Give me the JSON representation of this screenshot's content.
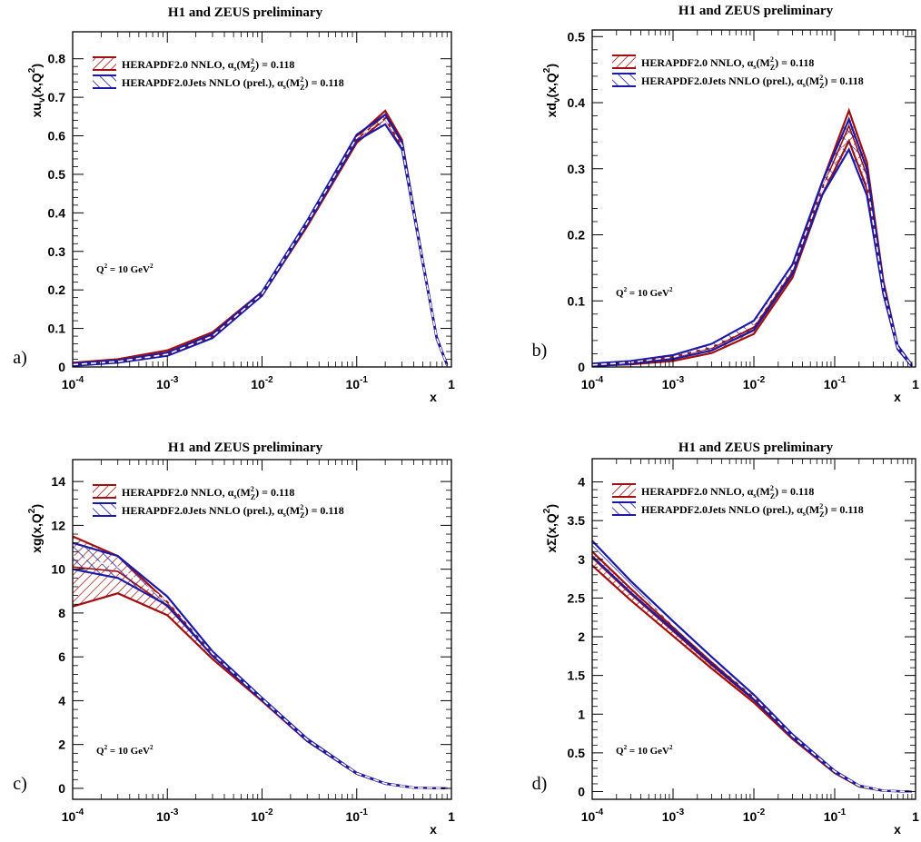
{
  "colors": {
    "red": "#a01010",
    "blue": "#1a1aa6",
    "dash": "#ffffff"
  },
  "legend": {
    "entry1": {
      "prefix": "HERAPDF2.0 NNLO, ",
      "alpha": "α",
      "s": "s",
      "m": "(M",
      "z": "Z",
      "two": "2",
      "close": ") = 0.118"
    },
    "entry2": {
      "prefix": "HERAPDF2.0Jets NNLO (prel.), ",
      "alpha": "α",
      "s": "s",
      "m": "(M",
      "z": "Z",
      "two": "2",
      "close": ") = 0.118"
    }
  },
  "q2_label": {
    "main": "Q",
    "sup": "2",
    "mid": " = 10 GeV",
    "sup2": "2"
  },
  "x_axis": {
    "label": "x",
    "ticks": [
      {
        "value": 0.0001,
        "base": "10",
        "exp": "-4"
      },
      {
        "value": 0.001,
        "base": "10",
        "exp": "-3"
      },
      {
        "value": 0.01,
        "base": "10",
        "exp": "-2"
      },
      {
        "value": 0.1,
        "base": "10",
        "exp": "-1"
      },
      {
        "value": 1,
        "base": "1",
        "exp": ""
      }
    ]
  },
  "chart_data": [
    {
      "type": "area",
      "panel": "a)",
      "title": "H1 and ZEUS preliminary",
      "ylabel": {
        "pre": "xu",
        "sub": "v",
        "mid": "(x,Q",
        "sup": "2",
        "post": ")"
      },
      "xscale": "log",
      "xlim": [
        0.0001,
        1
      ],
      "ylim": [
        0,
        0.87
      ],
      "yticks": [
        0,
        0.1,
        0.2,
        0.3,
        0.4,
        0.5,
        0.6,
        0.7,
        0.8
      ],
      "yticklabels": [
        "0",
        "0.1",
        "0.2",
        "0.3",
        "0.4",
        "0.5",
        "0.6",
        "0.7",
        "0.8"
      ],
      "x": [
        0.0001,
        0.0003,
        0.001,
        0.003,
        0.01,
        0.03,
        0.1,
        0.2,
        0.3,
        0.5,
        0.7,
        0.9
      ],
      "series": [
        {
          "central": [
            0.008,
            0.017,
            0.038,
            0.085,
            0.19,
            0.37,
            0.59,
            0.655,
            0.58,
            0.27,
            0.075,
            0.005
          ],
          "upper": [
            0.011,
            0.02,
            0.043,
            0.09,
            0.195,
            0.375,
            0.598,
            0.665,
            0.59,
            0.275,
            0.078,
            0.006
          ],
          "lower": [
            0.005,
            0.014,
            0.033,
            0.08,
            0.185,
            0.365,
            0.582,
            0.645,
            0.57,
            0.265,
            0.072,
            0.004
          ]
        },
        {
          "central": [
            0.006,
            0.014,
            0.033,
            0.08,
            0.19,
            0.375,
            0.595,
            0.645,
            0.575,
            0.27,
            0.075,
            0.005
          ],
          "upper": [
            0.009,
            0.017,
            0.037,
            0.085,
            0.195,
            0.38,
            0.603,
            0.655,
            0.585,
            0.275,
            0.078,
            0.006
          ],
          "lower": [
            0.003,
            0.011,
            0.029,
            0.075,
            0.185,
            0.37,
            0.587,
            0.63,
            0.565,
            0.265,
            0.072,
            0.004
          ]
        }
      ]
    },
    {
      "type": "area",
      "panel": "b)",
      "title": "H1 and ZEUS preliminary",
      "ylabel": {
        "pre": "xd",
        "sub": "v",
        "mid": "(x,Q",
        "sup": "2",
        "post": ")"
      },
      "xscale": "log",
      "xlim": [
        0.0001,
        1
      ],
      "ylim": [
        0,
        0.51
      ],
      "yticks": [
        0,
        0.1,
        0.2,
        0.3,
        0.4,
        0.5
      ],
      "yticklabels": [
        "0",
        "0.1",
        "0.2",
        "0.3",
        "0.4",
        "0.5"
      ],
      "x": [
        0.0001,
        0.0003,
        0.001,
        0.003,
        0.01,
        0.03,
        0.07,
        0.15,
        0.25,
        0.4,
        0.6,
        0.9
      ],
      "series": [
        {
          "central": [
            0.003,
            0.006,
            0.012,
            0.025,
            0.055,
            0.14,
            0.27,
            0.365,
            0.29,
            0.12,
            0.03,
            0.002
          ],
          "upper": [
            0.004,
            0.008,
            0.015,
            0.029,
            0.06,
            0.145,
            0.28,
            0.388,
            0.31,
            0.13,
            0.033,
            0.003
          ],
          "lower": [
            0.002,
            0.004,
            0.009,
            0.021,
            0.05,
            0.135,
            0.26,
            0.342,
            0.27,
            0.11,
            0.027,
            0.001
          ]
        },
        {
          "central": [
            0.003,
            0.007,
            0.015,
            0.03,
            0.063,
            0.148,
            0.27,
            0.352,
            0.28,
            0.118,
            0.03,
            0.002
          ],
          "upper": [
            0.005,
            0.009,
            0.018,
            0.035,
            0.07,
            0.155,
            0.28,
            0.375,
            0.3,
            0.125,
            0.033,
            0.003
          ],
          "lower": [
            0.001,
            0.005,
            0.012,
            0.025,
            0.056,
            0.141,
            0.26,
            0.329,
            0.26,
            0.111,
            0.027,
            0.001
          ]
        }
      ]
    },
    {
      "type": "area",
      "panel": "c)",
      "title": "H1 and ZEUS preliminary",
      "ylabel": {
        "pre": "xg",
        "sub": "",
        "mid": "(x,Q",
        "sup": "2",
        "post": ")"
      },
      "xscale": "log",
      "xlim": [
        0.0001,
        1
      ],
      "ylim": [
        -0.5,
        15
      ],
      "yticks": [
        0,
        2,
        4,
        6,
        8,
        10,
        12,
        14
      ],
      "yticklabels": [
        "0",
        "2",
        "4",
        "6",
        "8",
        "10",
        "12",
        "14"
      ],
      "x": [
        0.0001,
        0.0003,
        0.001,
        0.003,
        0.01,
        0.03,
        0.1,
        0.2,
        0.4,
        0.9
      ],
      "series": [
        {
          "central": [
            10.1,
            9.9,
            8.3,
            6.05,
            4.05,
            2.2,
            0.68,
            0.22,
            0.03,
            0.0
          ],
          "upper": [
            11.5,
            10.6,
            8.5,
            6.1,
            4.1,
            2.25,
            0.7,
            0.23,
            0.035,
            0.0
          ],
          "lower": [
            8.3,
            8.9,
            7.9,
            5.9,
            3.98,
            2.15,
            0.66,
            0.21,
            0.025,
            0.0
          ]
        },
        {
          "central": [
            10.6,
            10.1,
            8.55,
            6.15,
            4.08,
            2.22,
            0.69,
            0.22,
            0.03,
            0.0
          ],
          "upper": [
            11.2,
            10.6,
            8.75,
            6.25,
            4.13,
            2.27,
            0.71,
            0.23,
            0.035,
            0.0
          ],
          "lower": [
            10.0,
            9.6,
            8.35,
            6.05,
            4.03,
            2.17,
            0.67,
            0.21,
            0.025,
            0.0
          ]
        }
      ]
    },
    {
      "type": "area",
      "panel": "d)",
      "title": "H1 and ZEUS preliminary",
      "ylabel": {
        "pre": "xΣ",
        "sub": "",
        "mid": "(x,Q",
        "sup": "2",
        "post": ")"
      },
      "xscale": "log",
      "xlim": [
        0.0001,
        1
      ],
      "ylim": [
        -0.1,
        4.3
      ],
      "yticks": [
        0,
        0.5,
        1,
        1.5,
        2,
        2.5,
        3,
        3.5,
        4
      ],
      "yticklabels": [
        "0",
        "0.5",
        "1",
        "1.5",
        "2",
        "2.5",
        "3",
        "3.5",
        "4"
      ],
      "x": [
        0.0001,
        0.0003,
        0.001,
        0.003,
        0.01,
        0.03,
        0.1,
        0.2,
        0.4,
        0.9
      ],
      "series": [
        {
          "central": [
            3.02,
            2.55,
            2.07,
            1.63,
            1.18,
            0.7,
            0.25,
            0.07,
            0.01,
            0.0
          ],
          "upper": [
            3.1,
            2.62,
            2.12,
            1.67,
            1.21,
            0.72,
            0.26,
            0.075,
            0.012,
            0.0
          ],
          "lower": [
            2.92,
            2.47,
            2.01,
            1.59,
            1.15,
            0.68,
            0.24,
            0.065,
            0.008,
            0.0
          ]
        },
        {
          "central": [
            3.15,
            2.65,
            2.15,
            1.7,
            1.22,
            0.72,
            0.26,
            0.075,
            0.01,
            0.0
          ],
          "upper": [
            3.24,
            2.72,
            2.2,
            1.74,
            1.25,
            0.74,
            0.27,
            0.08,
            0.012,
            0.0
          ],
          "lower": [
            3.04,
            2.57,
            2.09,
            1.65,
            1.19,
            0.7,
            0.25,
            0.07,
            0.008,
            0.0
          ]
        }
      ]
    }
  ]
}
